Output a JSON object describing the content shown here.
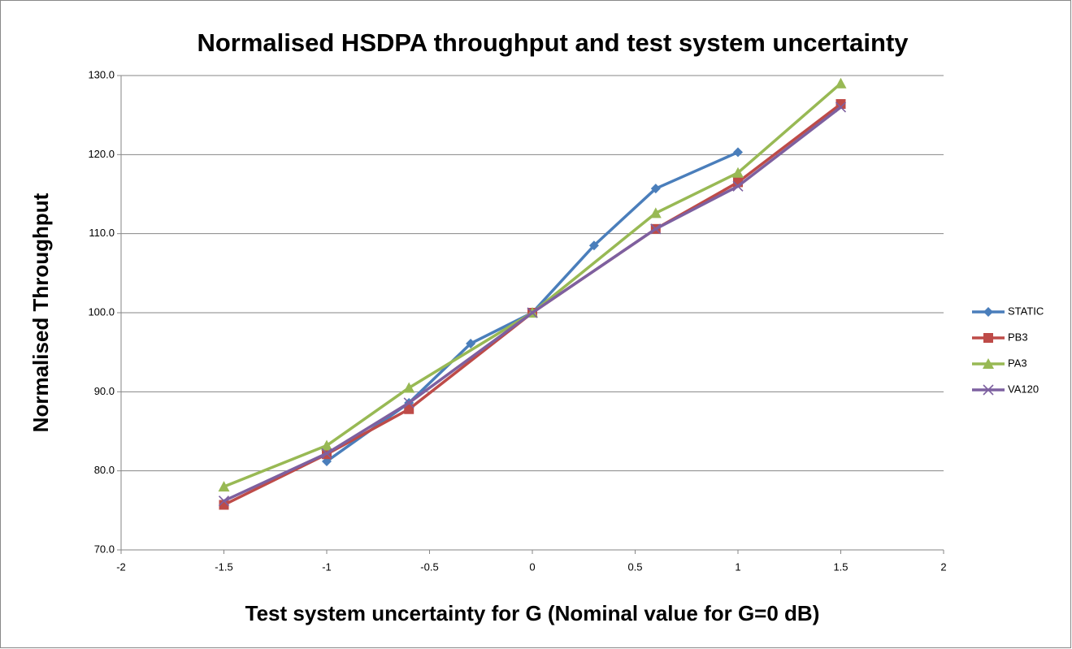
{
  "chart_data": {
    "type": "line",
    "title": "Normalised HSDPA throughput and test system uncertainty",
    "x_label": "Test system uncertainty for G (Nominal value for G=0 dB)",
    "y_label": "Normalised Throughput",
    "xlim": [
      -2,
      2
    ],
    "xticks": [
      -2,
      -1.5,
      -1,
      -0.5,
      0,
      0.5,
      1,
      1.5,
      2
    ],
    "ylim": [
      70,
      130
    ],
    "yticks": [
      {
        "value": 70,
        "label": "70.0"
      },
      {
        "value": 80,
        "label": "80.0"
      },
      {
        "value": 90,
        "label": "90.0"
      },
      {
        "value": 100,
        "label": "100.0"
      },
      {
        "value": 110,
        "label": "110.0"
      },
      {
        "value": 120,
        "label": "120.0"
      },
      {
        "value": 130,
        "label": "130.0"
      }
    ],
    "grid": true,
    "legend": "right",
    "series": [
      {
        "name": "STATIC",
        "color": "#4a7ebb",
        "marker": "diamond",
        "x": [
          -1,
          -0.6,
          -0.3,
          0,
          0.3,
          0.6,
          1
        ],
        "values": [
          81.2,
          88.6,
          96.1,
          100,
          108.5,
          115.7,
          120.3
        ]
      },
      {
        "name": "PB3",
        "color": "#be4b48",
        "marker": "square",
        "x": [
          -1.5,
          -1,
          -0.6,
          0,
          0.6,
          1,
          1.5
        ],
        "values": [
          75.7,
          82.1,
          87.8,
          100,
          110.6,
          116.5,
          126.4
        ]
      },
      {
        "name": "PA3",
        "color": "#98b954",
        "marker": "triangle",
        "x": [
          -1.5,
          -1,
          -0.6,
          0,
          0.6,
          1,
          1.5
        ],
        "values": [
          78.0,
          83.2,
          90.5,
          100,
          112.6,
          117.7,
          129.0
        ]
      },
      {
        "name": "VA120",
        "color": "#7d60a0",
        "marker": "x",
        "x": [
          -1.5,
          -1,
          -0.6,
          0,
          0.6,
          1,
          1.5
        ],
        "values": [
          76.2,
          82.2,
          88.6,
          100,
          110.6,
          116.0,
          126.0
        ]
      }
    ]
  }
}
